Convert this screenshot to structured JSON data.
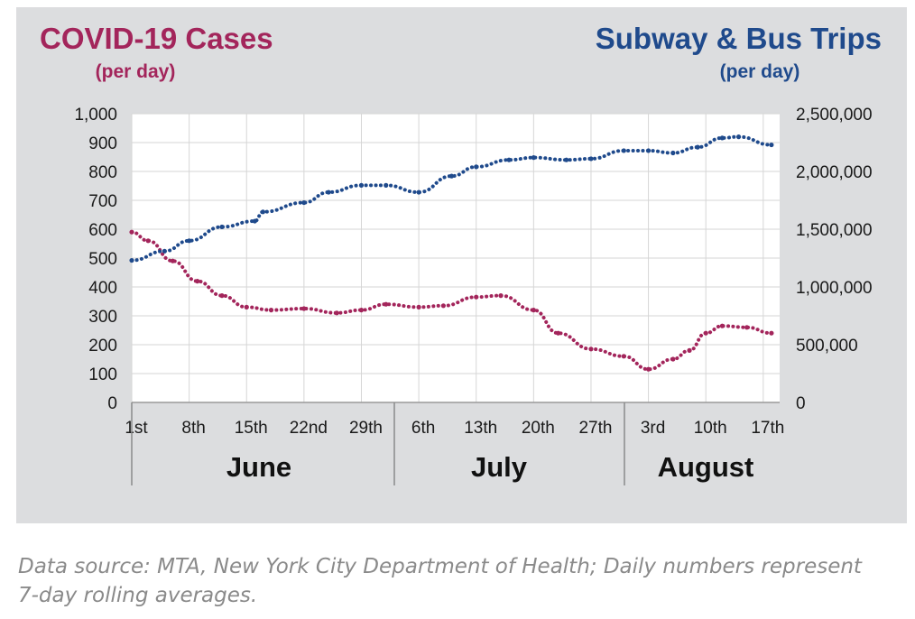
{
  "chart_data": {
    "type": "line",
    "left_title": "COVID-19 Cases",
    "left_subtitle": "(per day)",
    "right_title": "Subway & Bus Trips",
    "right_subtitle": "(per day)",
    "x_start": "June 1",
    "x_end": "August 19",
    "left_axis": {
      "ylim": [
        0,
        1000
      ],
      "ticks": [
        "0",
        "100",
        "200",
        "300",
        "400",
        "500",
        "600",
        "700",
        "800",
        "900",
        "1,000"
      ]
    },
    "right_axis": {
      "ylim": [
        0,
        2500000
      ],
      "ticks": [
        "0",
        "500,000",
        "1,000,000",
        "1,500,000",
        "2,000,000",
        "2,500,000"
      ]
    },
    "x_ticks": [
      "1st",
      "8th",
      "15th",
      "22nd",
      "29th",
      "6th",
      "13th",
      "20th",
      "27th",
      "3rd",
      "10th",
      "17th"
    ],
    "months": [
      "June",
      "July",
      "August"
    ],
    "grid": true,
    "series": [
      {
        "name": "COVID-19 Cases",
        "axis": "left",
        "color": "#a3255b",
        "points": [
          [
            "June 1",
            590
          ],
          [
            "June 3",
            560
          ],
          [
            "June 6",
            490
          ],
          [
            "June 9",
            420
          ],
          [
            "June 12",
            370
          ],
          [
            "June 15",
            330
          ],
          [
            "June 18",
            320
          ],
          [
            "June 22",
            325
          ],
          [
            "June 26",
            310
          ],
          [
            "June 29",
            320
          ],
          [
            "July 2",
            340
          ],
          [
            "July 6",
            330
          ],
          [
            "July 9",
            335
          ],
          [
            "July 13",
            365
          ],
          [
            "July 16",
            370
          ],
          [
            "July 20",
            320
          ],
          [
            "July 23",
            240
          ],
          [
            "July 27",
            185
          ],
          [
            "July 31",
            160
          ],
          [
            "August 3",
            115
          ],
          [
            "August 6",
            150
          ],
          [
            "August 8",
            180
          ],
          [
            "August 10",
            240
          ],
          [
            "August 12",
            265
          ],
          [
            "August 15",
            260
          ],
          [
            "August 18",
            240
          ]
        ]
      },
      {
        "name": "Subway & Bus Trips",
        "axis": "right",
        "color": "#1f4a8c",
        "points": [
          [
            "June 1",
            1230000
          ],
          [
            "June 5",
            1310000
          ],
          [
            "June 8",
            1400000
          ],
          [
            "June 12",
            1520000
          ],
          [
            "June 16",
            1570000
          ],
          [
            "June 17",
            1650000
          ],
          [
            "June 22",
            1730000
          ],
          [
            "June 25",
            1820000
          ],
          [
            "June 29",
            1880000
          ],
          [
            "July 2",
            1880000
          ],
          [
            "July 6",
            1820000
          ],
          [
            "July 10",
            1960000
          ],
          [
            "July 13",
            2040000
          ],
          [
            "July 17",
            2100000
          ],
          [
            "July 20",
            2120000
          ],
          [
            "July 24",
            2100000
          ],
          [
            "July 27",
            2110000
          ],
          [
            "July 31",
            2180000
          ],
          [
            "August 3",
            2180000
          ],
          [
            "August 6",
            2160000
          ],
          [
            "August 9",
            2210000
          ],
          [
            "August 12",
            2290000
          ],
          [
            "August 14",
            2300000
          ],
          [
            "August 18",
            2230000
          ]
        ]
      }
    ]
  },
  "footer": {
    "source_line1": "Data source: MTA, New York City Department of Health; Daily numbers represent",
    "source_line2": "7-day rolling averages."
  }
}
